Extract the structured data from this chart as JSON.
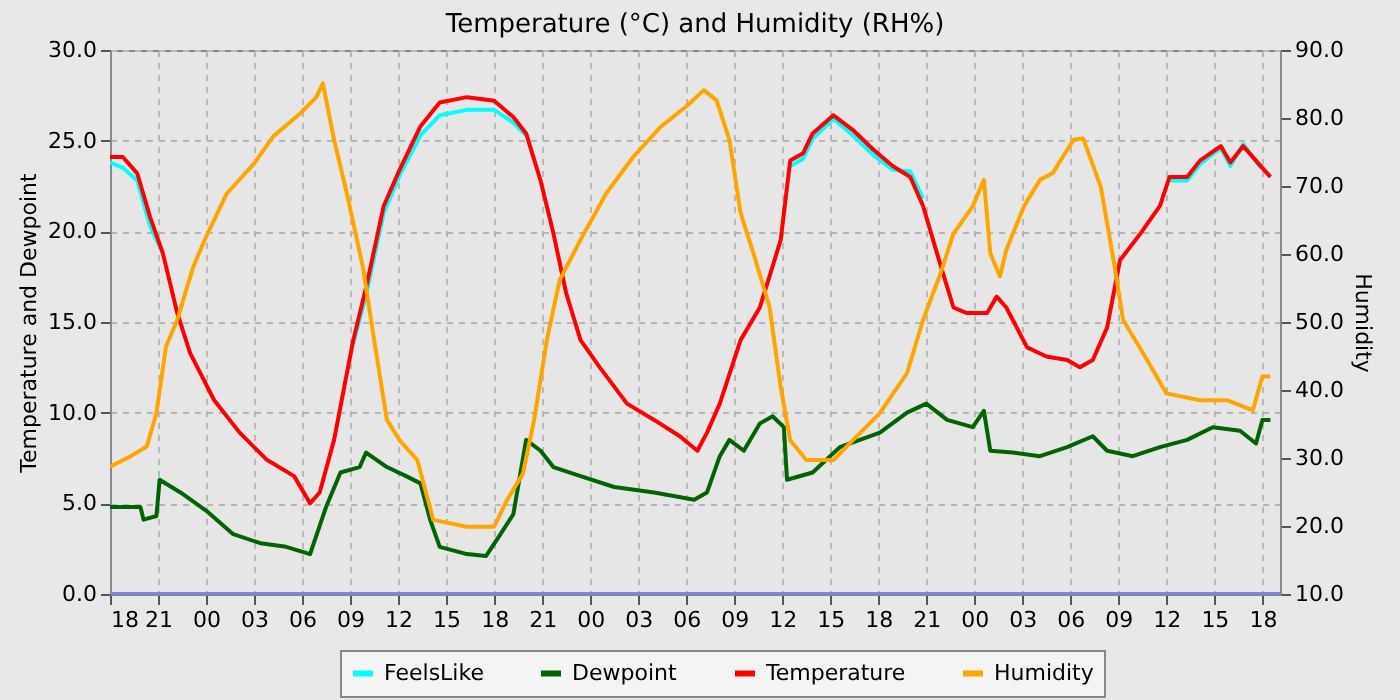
{
  "chart_data": {
    "type": "line",
    "title": "Temperature (°C) and Humidity (RH%)",
    "ylabel": "Temperature and Dewpoint",
    "y2label": "Humidity",
    "xlim": [
      "--01-01T18:00",
      "--01-04T19:06"
    ],
    "xticks": [
      {
        "value": "--01-01T18:00",
        "label": "18"
      },
      {
        "value": "--01-01T21:00",
        "label": "21"
      },
      {
        "value": "--01-02T00:00",
        "label": "00"
      },
      {
        "value": "--01-02T03:00",
        "label": "03"
      },
      {
        "value": "--01-02T06:00",
        "label": "06"
      },
      {
        "value": "--01-02T09:00",
        "label": "09"
      },
      {
        "value": "--01-02T12:00",
        "label": "12"
      },
      {
        "value": "--01-02T15:00",
        "label": "15"
      },
      {
        "value": "--01-02T18:00",
        "label": "18"
      },
      {
        "value": "--01-02T21:00",
        "label": "21"
      },
      {
        "value": "--01-03T00:00",
        "label": "00"
      },
      {
        "value": "--01-03T03:00",
        "label": "03"
      },
      {
        "value": "--01-03T06:00",
        "label": "06"
      },
      {
        "value": "--01-03T09:00",
        "label": "09"
      },
      {
        "value": "--01-03T12:00",
        "label": "12"
      },
      {
        "value": "--01-03T15:00",
        "label": "15"
      },
      {
        "value": "--01-03T18:00",
        "label": "18"
      },
      {
        "value": "--01-03T21:00",
        "label": "21"
      },
      {
        "value": "--01-04T00:00",
        "label": "00"
      },
      {
        "value": "--01-04T03:00",
        "label": "03"
      },
      {
        "value": "--01-04T06:00",
        "label": "06"
      },
      {
        "value": "--01-04T09:00",
        "label": "09"
      },
      {
        "value": "--01-04T12:00",
        "label": "12"
      },
      {
        "value": "--01-04T15:00",
        "label": "15"
      },
      {
        "value": "--01-04T18:00",
        "label": "18"
      }
    ],
    "ylim": [
      0,
      30
    ],
    "yticks": [
      {
        "value": 0,
        "label": "0.0"
      },
      {
        "value": 5,
        "label": "5.0"
      },
      {
        "value": 10,
        "label": "10.0"
      },
      {
        "value": 15,
        "label": "15.0"
      },
      {
        "value": 20,
        "label": "20.0"
      },
      {
        "value": 25,
        "label": "25.0"
      },
      {
        "value": 30,
        "label": "30.0"
      }
    ],
    "y2lim": [
      10,
      90
    ],
    "y2ticks": [
      {
        "value": 10,
        "label": "10.0"
      },
      {
        "value": 20,
        "label": "20.0"
      },
      {
        "value": 30,
        "label": "30.0"
      },
      {
        "value": 40,
        "label": "40.0"
      },
      {
        "value": 50,
        "label": "50.0"
      },
      {
        "value": 60,
        "label": "60.0"
      },
      {
        "value": 70,
        "label": "70.0"
      },
      {
        "value": 80,
        "label": "80.0"
      },
      {
        "value": 90,
        "label": "90.0"
      }
    ],
    "grid": true,
    "legend": "bottom",
    "marker": "none",
    "line_style": "solid",
    "series": [
      {
        "name": "FeelsLike",
        "color": "#00ffff",
        "x": [
          "--01-01T18:00",
          "--01-01T18:48",
          "--01-01T19:42",
          "--01-01T20:30",
          "--01-01T21:18",
          "--01-01T22:12",
          "--01-01T23:00",
          "--01-02T00:30",
          "--01-02T02:06",
          "--01-02T03:48",
          "--01-02T05:30",
          "--01-02T06:30",
          "--01-02T07:06",
          "--01-02T08:00",
          "--01-02T09:12",
          "--01-02T10:00",
          "--01-02T11:06",
          "--01-02T12:06",
          "--01-02T13:24",
          "--01-02T14:36",
          "--01-02T16:18",
          "--01-02T18:00",
          "--01-02T19:12",
          "--01-02T20:00",
          "--01-02T20:54",
          "--01-02T21:42",
          "--01-02T22:30",
          "--01-02T23:24",
          "--01-03T00:36",
          "--01-03T02:18",
          "--01-03T04:00",
          "--01-03T05:36",
          "--01-03T06:42",
          "--01-03T07:18",
          "--01-03T08:06",
          "--01-03T09:24",
          "--01-03T10:36",
          "--01-03T11:54",
          "--01-03T12:30",
          "--01-03T13:18",
          "--01-03T13:54",
          "--01-03T15:12",
          "--01-03T16:24",
          "--01-03T17:42",
          "--01-03T18:54",
          "--01-03T20:00",
          "--01-03T20:48",
          "--01-03T21:54",
          "--01-03T22:42",
          "--01-03T23:30",
          "--01-04T00:48",
          "--01-04T01:24",
          "--01-04T02:00",
          "--01-04T03:18",
          "--01-04T04:30",
          "--01-04T05:48",
          "--01-04T06:36",
          "--01-04T07:24",
          "--01-04T08:18",
          "--01-04T09:06",
          "--01-04T10:24",
          "--01-04T11:36",
          "--01-04T12:12",
          "--01-04T13:18",
          "--01-04T14:06",
          "--01-04T15:24",
          "--01-04T16:00",
          "--01-04T16:48",
          "--01-04T17:54"
        ],
        "values": [
          23.8,
          23.5,
          22.8,
          20.3,
          18.8,
          null,
          null,
          null,
          null,
          null,
          null,
          null,
          null,
          null,
          13.8,
          16.5,
          21.0,
          23.1,
          25.3,
          26.4,
          26.7,
          26.7,
          26.0,
          25.3,
          null,
          null,
          null,
          null,
          null,
          null,
          null,
          null,
          null,
          null,
          null,
          null,
          null,
          null,
          23.6,
          24.0,
          25.1,
          26.2,
          25.3,
          24.2,
          23.4,
          23.3,
          21.8,
          null,
          null,
          null,
          null,
          null,
          null,
          null,
          null,
          null,
          null,
          null,
          null,
          null,
          null,
          null,
          22.8,
          22.8,
          23.7,
          24.6,
          23.6,
          24.8,
          23.5
        ]
      },
      {
        "name": "Dewpoint",
        "color": "#006400",
        "x": [
          "--01-01T18:00",
          "--01-01T19:54",
          "--01-01T20:06",
          "--01-01T20:54",
          "--01-01T21:06",
          "--01-01T22:24",
          "--01-02T00:00",
          "--01-02T01:42",
          "--01-02T03:24",
          "--01-02T05:00",
          "--01-02T06:30",
          "--01-02T07:30",
          "--01-02T08:24",
          "--01-02T09:36",
          "--01-02T10:00",
          "--01-02T11:18",
          "--01-02T12:30",
          "--01-02T13:24",
          "--01-02T14:00",
          "--01-02T14:36",
          "--01-02T16:18",
          "--01-02T17:30",
          "--01-02T18:24",
          "--01-02T19:12",
          "--01-02T20:00",
          "--01-02T20:54",
          "--01-02T21:42",
          "--01-02T23:24",
          "--01-03T01:30",
          "--01-03T04:00",
          "--01-03T06:30",
          "--01-03T07:18",
          "--01-03T08:06",
          "--01-03T08:42",
          "--01-03T09:36",
          "--01-03T10:36",
          "--01-03T11:24",
          "--01-03T12:06",
          "--01-03T12:18",
          "--01-03T13:54",
          "--01-03T15:36",
          "--01-03T18:06",
          "--01-03T19:48",
          "--01-03T21:00",
          "--01-03T22:18",
          "--01-03T23:54",
          "--01-04T00:36",
          "--01-04T01:00",
          "--01-04T02:24",
          "--01-04T04:06",
          "--01-04T05:48",
          "--01-04T07:24",
          "--01-04T08:18",
          "--01-04T09:54",
          "--01-04T11:36",
          "--01-04T13:18",
          "--01-04T14:54",
          "--01-04T16:36",
          "--01-04T17:36",
          "--01-04T18:00",
          "--01-04T18:30"
        ],
        "values": [
          4.8,
          4.8,
          4.1,
          4.3,
          6.3,
          5.6,
          4.6,
          3.3,
          2.8,
          2.6,
          2.2,
          4.8,
          6.7,
          7.0,
          7.8,
          7.0,
          6.5,
          6.1,
          4.1,
          2.6,
          2.2,
          2.1,
          3.3,
          4.4,
          8.5,
          7.9,
          7.0,
          6.5,
          5.9,
          5.6,
          5.2,
          5.6,
          7.6,
          8.5,
          7.9,
          9.4,
          9.8,
          9.2,
          6.3,
          6.7,
          8.1,
          8.9,
          10.0,
          10.5,
          9.6,
          9.2,
          10.1,
          7.9,
          7.8,
          7.6,
          8.1,
          8.7,
          7.9,
          7.6,
          8.1,
          8.5,
          9.2,
          9.0,
          8.3,
          9.6,
          9.6
        ]
      },
      {
        "name": "Temperature",
        "color": "#ff0000",
        "x": [
          "--01-01T18:00",
          "--01-01T18:48",
          "--01-01T19:42",
          "--01-01T20:30",
          "--01-01T21:18",
          "--01-01T22:12",
          "--01-01T23:00",
          "--01-02T00:30",
          "--01-02T02:06",
          "--01-02T03:48",
          "--01-02T05:30",
          "--01-02T06:30",
          "--01-02T07:06",
          "--01-02T08:00",
          "--01-02T09:12",
          "--01-02T10:00",
          "--01-02T11:06",
          "--01-02T12:06",
          "--01-02T13:24",
          "--01-02T14:36",
          "--01-02T16:18",
          "--01-02T18:00",
          "--01-02T19:12",
          "--01-02T20:00",
          "--01-02T20:54",
          "--01-02T21:42",
          "--01-02T22:30",
          "--01-02T23:24",
          "--01-03T00:36",
          "--01-03T02:18",
          "--01-03T04:00",
          "--01-03T05:36",
          "--01-03T06:42",
          "--01-03T07:18",
          "--01-03T08:06",
          "--01-03T09:24",
          "--01-03T10:36",
          "--01-03T11:54",
          "--01-03T12:30",
          "--01-03T13:18",
          "--01-03T13:54",
          "--01-03T15:12",
          "--01-03T16:24",
          "--01-03T17:42",
          "--01-03T18:54",
          "--01-03T20:00",
          "--01-03T20:48",
          "--01-03T21:54",
          "--01-03T22:42",
          "--01-03T23:30",
          "--01-04T00:48",
          "--01-04T01:24",
          "--01-04T02:00",
          "--01-04T03:18",
          "--01-04T04:30",
          "--01-04T05:48",
          "--01-04T06:36",
          "--01-04T07:24",
          "--01-04T08:18",
          "--01-04T09:06",
          "--01-04T10:24",
          "--01-04T11:36",
          "--01-04T12:12",
          "--01-04T13:18",
          "--01-04T14:06",
          "--01-04T15:24",
          "--01-04T16:00",
          "--01-04T16:48",
          "--01-04T17:54",
          "--01-04T18:30"
        ],
        "values": [
          24.1,
          24.1,
          23.2,
          20.8,
          18.8,
          15.5,
          13.3,
          10.7,
          8.9,
          7.4,
          6.5,
          5.0,
          5.6,
          8.5,
          14.0,
          16.9,
          21.4,
          23.4,
          25.8,
          27.1,
          27.4,
          27.2,
          26.3,
          25.4,
          22.8,
          19.9,
          16.6,
          14.0,
          12.5,
          10.5,
          9.6,
          8.7,
          7.9,
          8.9,
          10.5,
          14.0,
          15.8,
          19.5,
          23.9,
          24.3,
          25.4,
          26.4,
          25.6,
          24.5,
          23.6,
          23.0,
          21.4,
          18.1,
          15.8,
          15.5,
          15.5,
          16.4,
          15.8,
          13.6,
          13.1,
          12.9,
          12.5,
          12.9,
          14.7,
          18.4,
          19.9,
          21.4,
          23.0,
          23.0,
          23.9,
          24.7,
          23.8,
          24.7,
          23.6,
          23.0
        ]
      },
      {
        "name": "Humidity",
        "color": "#ffa500",
        "axis": "y2",
        "x": [
          "--01-01T18:00",
          "--01-01T19:15",
          "--01-01T20:18",
          "--01-01T20:54",
          "--01-01T21:30",
          "--01-01T22:12",
          "--01-01T23:12",
          "--01-02T00:00",
          "--01-02T01:18",
          "--01-02T03:00",
          "--01-02T04:12",
          "--01-02T05:54",
          "--01-02T06:54",
          "--01-02T07:18",
          "--01-02T08:00",
          "--01-02T08:48",
          "--01-02T09:48",
          "--01-02T10:30",
          "--01-02T11:18",
          "--01-02T12:06",
          "--01-02T13:12",
          "--01-02T14:12",
          "--01-02T16:18",
          "--01-02T18:00",
          "--01-02T18:48",
          "--01-02T19:48",
          "--01-02T20:30",
          "--01-02T21:18",
          "--01-02T22:06",
          "--01-02T23:24",
          "--01-03T01:00",
          "--01-03T02:42",
          "--01-03T04:24",
          "--01-03T06:00",
          "--01-03T07:06",
          "--01-03T07:54",
          "--01-03T08:42",
          "--01-03T09:24",
          "--01-03T10:12",
          "--01-03T11:12",
          "--01-03T11:54",
          "--01-03T12:30",
          "--01-03T13:30",
          "--01-03T15:12",
          "--01-03T16:24",
          "--01-03T18:06",
          "--01-03T19:48",
          "--01-03T20:48",
          "--01-03T21:54",
          "--01-03T22:42",
          "--01-03T23:54",
          "--01-04T00:36",
          "--01-04T01:00",
          "--01-04T01:36",
          "--01-04T02:00",
          "--01-04T03:06",
          "--01-04T04:06",
          "--01-04T04:54",
          "--01-04T06:12",
          "--01-04T06:48",
          "--01-04T07:54",
          "--01-04T08:42",
          "--01-04T09:18",
          "--01-04T10:48",
          "--01-04T12:00",
          "--01-04T14:06",
          "--01-04T15:48",
          "--01-04T17:24",
          "--01-04T18:00",
          "--01-04T18:30"
        ],
        "values": [
          28.7,
          30.2,
          31.7,
          36.6,
          46.4,
          50.3,
          58.1,
          62.5,
          68.9,
          73.3,
          77.3,
          80.7,
          83.1,
          85.1,
          76.8,
          68.9,
          58.1,
          47.4,
          35.6,
          32.6,
          29.7,
          20.9,
          19.9,
          19.9,
          23.8,
          27.7,
          35.6,
          47.4,
          56.2,
          62.1,
          68.9,
          74.3,
          78.7,
          81.7,
          84.1,
          82.6,
          76.8,
          66,
          60.1,
          52.3,
          40.5,
          32.6,
          29.7,
          29.7,
          32.6,
          36.6,
          42.5,
          50.3,
          57.2,
          63.0,
          67,
          70.9,
          60.1,
          56.7,
          60.6,
          67,
          70.9,
          71.9,
          76.8,
          77.0,
          69.9,
          59.1,
          50.3,
          44.4,
          39.5,
          38.5,
          38.5,
          37,
          42,
          42
        ]
      },
      {
        "color": "#8080ff",
        "x": [
          "--01-01T18:00",
          "--01-04T19:06"
        ],
        "values": [
          0,
          0
        ]
      }
    ]
  }
}
